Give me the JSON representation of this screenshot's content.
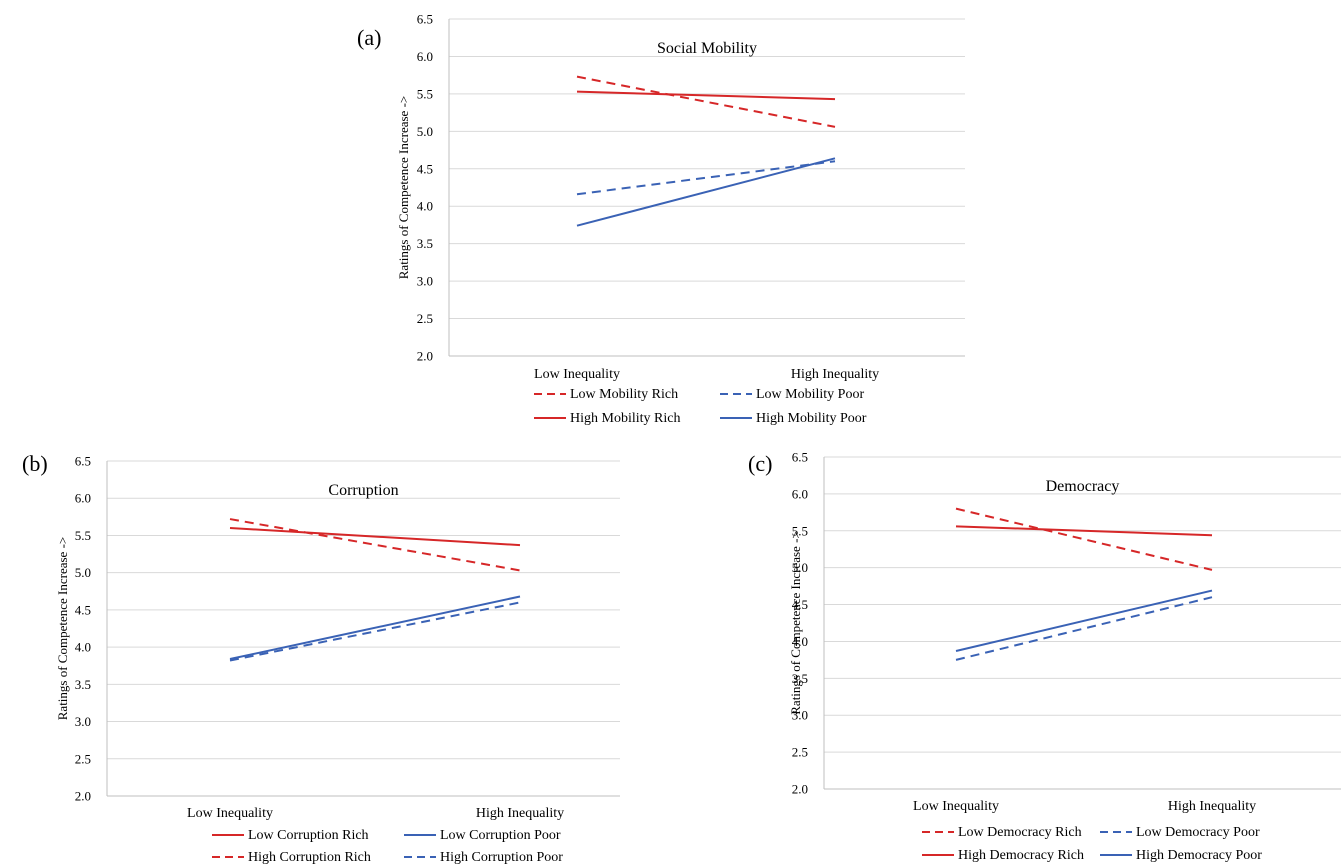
{
  "colors": {
    "rich": "#d62728",
    "poor": "#3a62b5",
    "grid": "#d9d9d9",
    "axis": "#bfbfbf"
  },
  "chart_data": [
    {
      "panel_label": "(a)",
      "type": "line",
      "title": "Social Mobility",
      "ylabel": "Ratings of Competence Increase ->",
      "xlabel": "",
      "ylim": [
        2.0,
        6.5
      ],
      "yticks": [
        "2.0",
        "2.5",
        "3.0",
        "3.5",
        "4.0",
        "4.5",
        "5.0",
        "5.5",
        "6.0",
        "6.5"
      ],
      "categories": [
        "Low Inequality",
        "High Inequality"
      ],
      "grid": true,
      "legend_position": "bottom",
      "series": [
        {
          "name": "Low Mobility Rich",
          "values": [
            5.73,
            5.06
          ],
          "color": "rich",
          "dash": "dashed"
        },
        {
          "name": "Low Mobility Poor",
          "values": [
            4.16,
            4.6
          ],
          "color": "poor",
          "dash": "dashed"
        },
        {
          "name": "High Mobility Rich",
          "values": [
            5.53,
            5.43
          ],
          "color": "rich",
          "dash": "solid"
        },
        {
          "name": "High Mobility Poor",
          "values": [
            3.74,
            4.64
          ],
          "color": "poor",
          "dash": "solid"
        }
      ]
    },
    {
      "panel_label": "(b)",
      "type": "line",
      "title": "Corruption",
      "ylabel": "Ratings of Competence Increase ->",
      "xlabel": "",
      "ylim": [
        2.0,
        6.5
      ],
      "yticks": [
        "2.0",
        "2.5",
        "3.0",
        "3.5",
        "4.0",
        "4.5",
        "5.0",
        "5.5",
        "6.0",
        "6.5"
      ],
      "categories": [
        "Low Inequality",
        "High Inequality"
      ],
      "grid": true,
      "legend_position": "bottom",
      "series": [
        {
          "name": "Low Corruption Rich",
          "values": [
            5.6,
            5.37
          ],
          "color": "rich",
          "dash": "solid"
        },
        {
          "name": "Low Corruption Poor",
          "values": [
            3.84,
            4.68
          ],
          "color": "poor",
          "dash": "solid"
        },
        {
          "name": "High Corruption Rich",
          "values": [
            5.72,
            5.03
          ],
          "color": "rich",
          "dash": "dashed"
        },
        {
          "name": "High Corruption Poor",
          "values": [
            3.82,
            4.6
          ],
          "color": "poor",
          "dash": "dashed"
        }
      ]
    },
    {
      "panel_label": "(c)",
      "type": "line",
      "title": "Democracy",
      "ylabel": "Ratings of Competence Increase ->",
      "xlabel": "",
      "ylim": [
        2.0,
        6.5
      ],
      "yticks": [
        "2.0",
        "2.5",
        "3.0",
        "3.5",
        "4.0",
        "4.5",
        "5.0",
        "5.5",
        "6.0",
        "6.5"
      ],
      "categories": [
        "Low Inequality",
        "High Inequality"
      ],
      "grid": true,
      "legend_position": "bottom",
      "series": [
        {
          "name": "Low Democracy Rich",
          "values": [
            5.8,
            4.97
          ],
          "color": "rich",
          "dash": "dashed"
        },
        {
          "name": "Low Democracy Poor",
          "values": [
            3.75,
            4.6
          ],
          "color": "poor",
          "dash": "dashed"
        },
        {
          "name": "High Democracy Rich",
          "values": [
            5.56,
            5.44
          ],
          "color": "rich",
          "dash": "solid"
        },
        {
          "name": "High Democracy Poor",
          "values": [
            3.87,
            4.69
          ],
          "color": "poor",
          "dash": "solid"
        }
      ]
    }
  ]
}
